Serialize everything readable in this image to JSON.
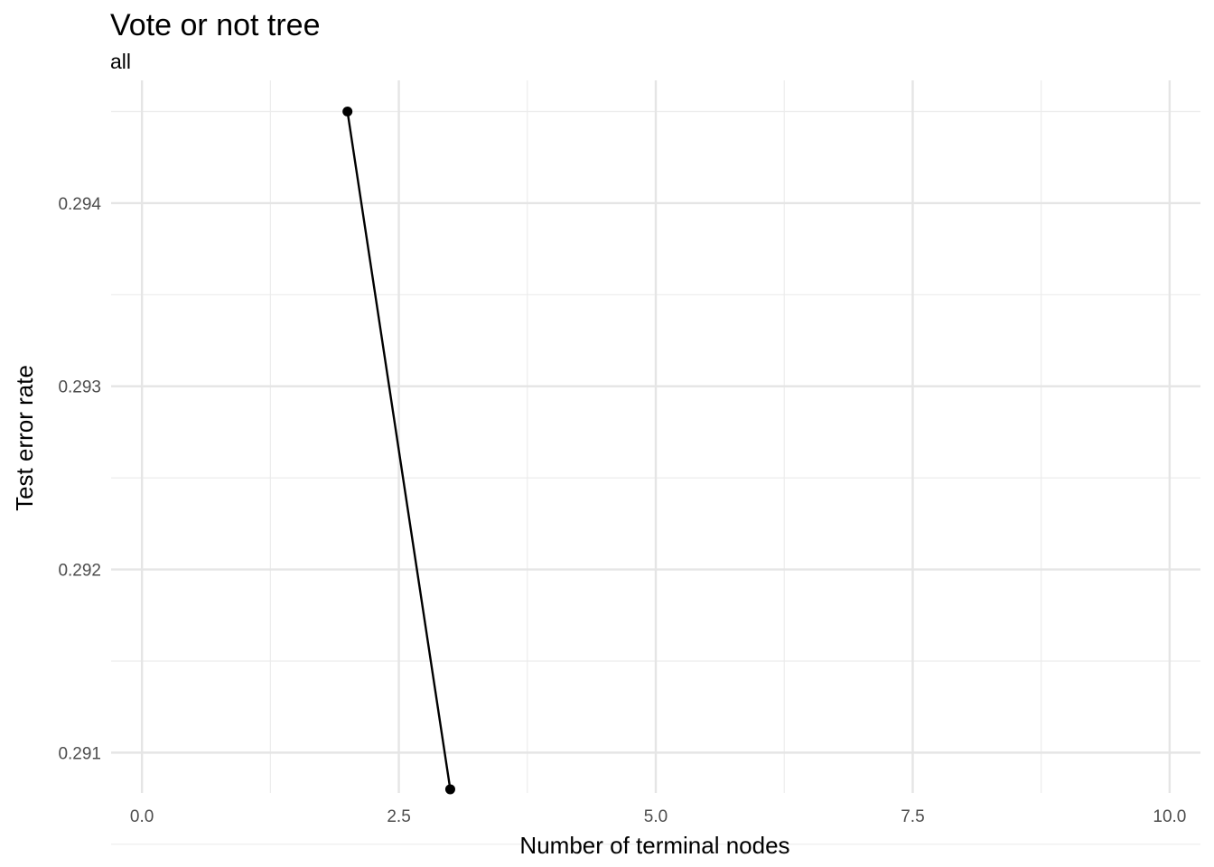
{
  "chart_data": {
    "type": "line",
    "title": "Vote or not tree",
    "subtitle": "all",
    "xlabel": "Number of terminal nodes",
    "ylabel": "Test error rate",
    "xlim": [
      -0.3,
      10.3
    ],
    "ylim": [
      0.29078,
      0.29467
    ],
    "x_ticks": [
      0.0,
      2.5,
      5.0,
      7.5,
      10.0
    ],
    "x_tick_labels": [
      "0.0",
      "2.5",
      "5.0",
      "7.5",
      "10.0"
    ],
    "x_minor_ticks": [
      1.25,
      3.75,
      6.25,
      8.75
    ],
    "y_ticks": [
      0.291,
      0.292,
      0.293,
      0.294
    ],
    "y_tick_labels": [
      "0.291",
      "0.292",
      "0.293",
      "0.294"
    ],
    "y_minor_ticks": [
      0.2905,
      0.2915,
      0.2925,
      0.2935,
      0.2945
    ],
    "grid": true,
    "series": [
      {
        "x": [
          2,
          3
        ],
        "values": [
          0.2945,
          0.2908
        ],
        "color": "#000000"
      }
    ]
  }
}
